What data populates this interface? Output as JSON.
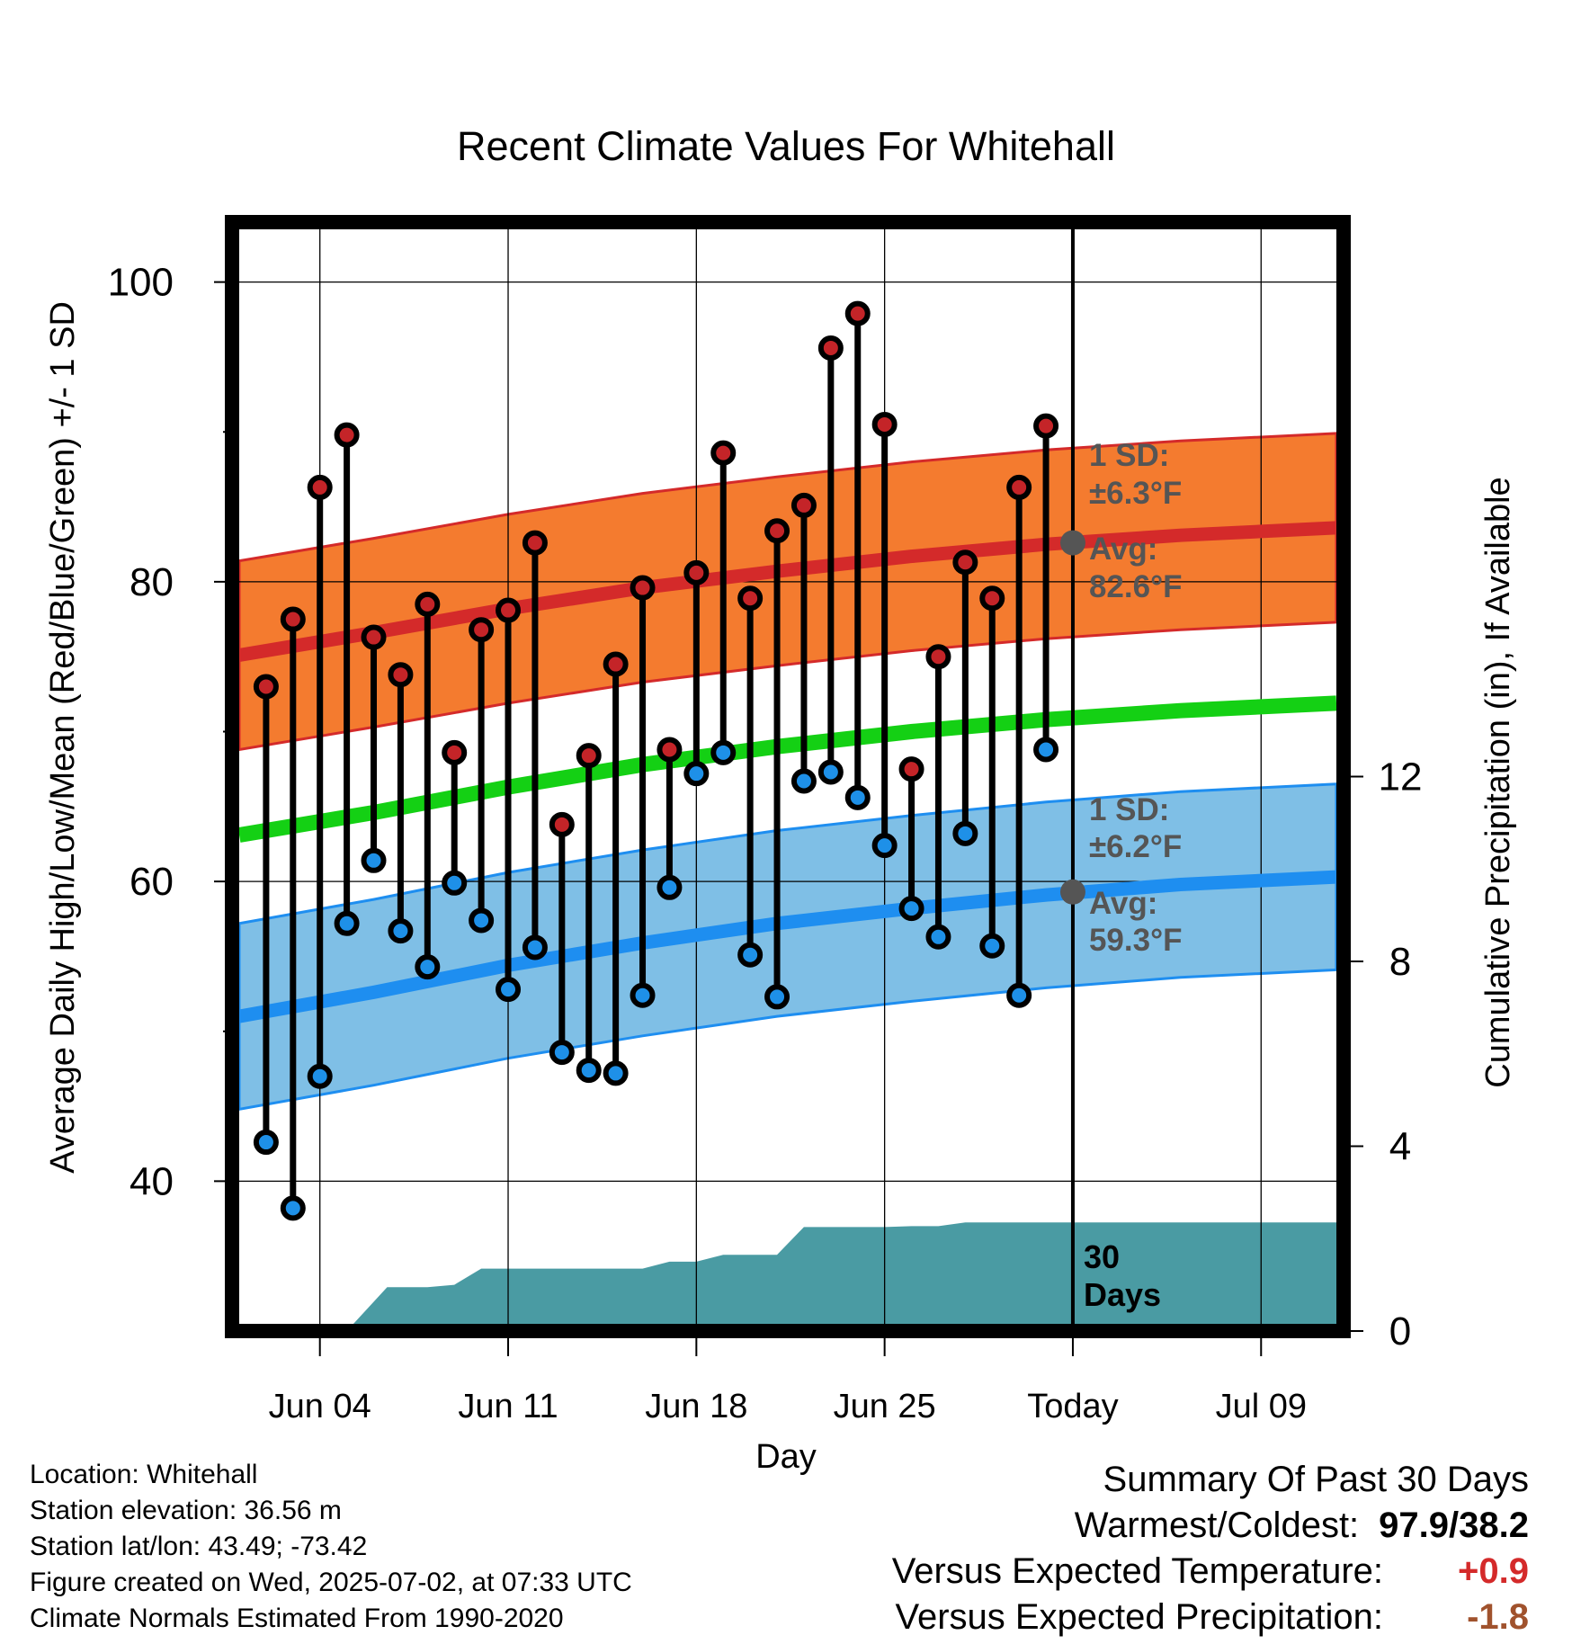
{
  "chart_data": {
    "type": "line",
    "title": "Recent Climate Values For Whitehall",
    "xlabel": "Day",
    "ylabel_left": "Average Daily High/Low/Mean (Red/Blue/Green) +/- 1 SD",
    "ylabel_right": "Cumulative Precipitation (in), If Available",
    "x_range_days": [
      0.0,
      40.8
    ],
    "x_ticks": [
      {
        "day": 3,
        "label": "Jun 04"
      },
      {
        "day": 10,
        "label": "Jun 11"
      },
      {
        "day": 17,
        "label": "Jun 18"
      },
      {
        "day": 24,
        "label": "Jun 25"
      },
      {
        "day": 31,
        "label": "Today"
      },
      {
        "day": 38,
        "label": "Jul 09"
      }
    ],
    "ylim_left": [
      30,
      104
    ],
    "y_ticks_left": [
      40,
      60,
      80,
      100
    ],
    "y_minor_ticks_left": [
      50,
      70,
      90
    ],
    "ylim_right": [
      0,
      24
    ],
    "y_ticks_right": [
      0,
      4,
      8,
      12
    ],
    "today_day": 31,
    "today_label": "30\nDays",
    "grid": true,
    "days": [
      1,
      2,
      3,
      4,
      5,
      6,
      7,
      8,
      9,
      10,
      11,
      12,
      13,
      14,
      15,
      16,
      17,
      18,
      19,
      20,
      21,
      22,
      23,
      24,
      25,
      26,
      27,
      28,
      29,
      30
    ],
    "daily_high": [
      73.0,
      77.5,
      86.3,
      89.8,
      76.3,
      73.8,
      78.5,
      68.6,
      76.8,
      78.1,
      82.6,
      63.8,
      68.4,
      74.5,
      79.6,
      68.8,
      80.6,
      88.6,
      78.9,
      83.4,
      85.1,
      95.6,
      97.9,
      90.5,
      67.5,
      75.0,
      81.3,
      78.9,
      86.3,
      90.4
    ],
    "daily_low": [
      42.6,
      38.2,
      47.0,
      57.2,
      61.4,
      56.7,
      54.3,
      59.9,
      57.4,
      52.8,
      55.6,
      48.6,
      47.4,
      47.2,
      52.4,
      59.6,
      67.2,
      68.6,
      55.1,
      52.3,
      66.7,
      67.3,
      65.6,
      62.4,
      58.2,
      56.3,
      63.2,
      55.7,
      52.4,
      68.8
    ],
    "normal_days": [
      0,
      5,
      10,
      15,
      20,
      25,
      30,
      35,
      40.8
    ],
    "normal_high": [
      75.1,
      76.6,
      78.2,
      79.6,
      80.7,
      81.7,
      82.5,
      83.1,
      83.6
    ],
    "normal_high_sd": 6.3,
    "normal_low": [
      51.0,
      52.6,
      54.4,
      55.9,
      57.2,
      58.2,
      59.1,
      59.8,
      60.3
    ],
    "normal_low_sd": 6.2,
    "normal_mean": [
      63.1,
      64.6,
      66.3,
      67.8,
      69.0,
      70.0,
      70.8,
      71.4,
      71.9
    ],
    "precip_days": [
      0,
      4,
      5.5,
      7,
      8,
      9,
      10,
      11,
      12,
      13,
      14,
      15,
      16,
      17,
      18,
      19,
      20,
      21,
      22,
      23,
      24,
      25,
      26,
      27,
      28,
      29,
      30,
      31,
      40.8
    ],
    "precip_cum": [
      0,
      0,
      0.95,
      0.95,
      1.0,
      1.35,
      1.35,
      1.35,
      1.35,
      1.35,
      1.35,
      1.35,
      1.5,
      1.5,
      1.65,
      1.65,
      1.65,
      2.25,
      2.25,
      2.25,
      2.25,
      2.27,
      2.27,
      2.35,
      2.35,
      2.35,
      2.35,
      2.35,
      2.35
    ],
    "annotations": {
      "high_sd": "1 SD:",
      "high_sd_value": "±6.3°F",
      "high_avg": "Avg:",
      "high_avg_value": "82.6°F",
      "low_sd": "1 SD:",
      "low_sd_value": "±6.2°F",
      "low_avg": "Avg:",
      "low_avg_value": "59.3°F"
    },
    "colors": {
      "high_band": "#f47b2f",
      "high_line": "#d42a2a",
      "low_band": "#7fbfe6",
      "low_line": "#1e8ef0",
      "mean_line": "#14d014",
      "precip": "#4a9ba3",
      "high_dot": "#c42428",
      "low_dot": "#1e90e8"
    }
  },
  "footer_left": {
    "location": "Location: Whitehall",
    "elevation": "Station elevation: 36.56 m",
    "latlon": "Station lat/lon: 43.49; -73.42",
    "created": "Figure created on Wed, 2025-07-02, at 07:33 UTC",
    "normals": "Climate Normals Estimated From 1990-2020"
  },
  "summary": {
    "heading": "Summary Of Past 30 Days",
    "warm_cold_label": "Warmest/Coldest:",
    "warm_cold_value": "97.9/38.2",
    "temp_label": "Versus Expected Temperature:",
    "temp_value": "+0.9",
    "temp_color": "#d42a2a",
    "precip_label": "Versus Expected Precipitation:",
    "precip_value": "-1.8",
    "precip_color": "#a0522d"
  }
}
